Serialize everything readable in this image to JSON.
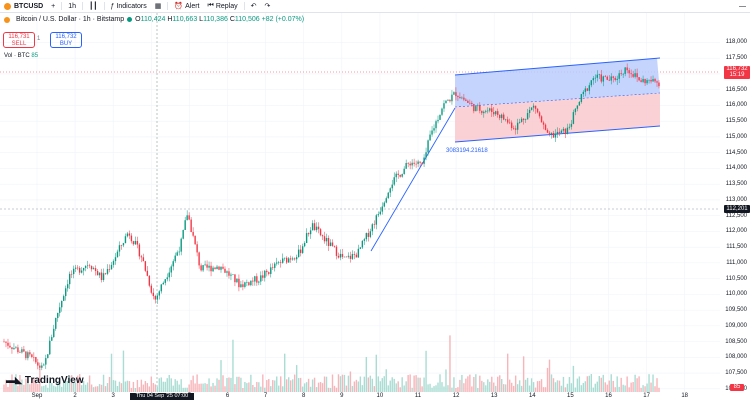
{
  "toolbar": {
    "symbol": "BTCUSD",
    "interval": "1h",
    "indicators_label": "Indicators",
    "alert_label": "Alert",
    "replay_label": "Replay"
  },
  "legend": {
    "title": "Bitcoin / U.S. Dollar · 1h · Bitstamp",
    "open_label": "O",
    "open": "110,424",
    "high_label": "H",
    "high": "110,663",
    "low_label": "L",
    "low": "110,386",
    "close_label": "C",
    "close": "110,506",
    "change": "+82 (+0.07%)"
  },
  "trade": {
    "sell_price": "116,731",
    "sell_label": "SELL",
    "buy_price": "116,732",
    "buy_label": "BUY",
    "spread": "1"
  },
  "volume_legend": {
    "label": "Vol · BTC",
    "value": "85"
  },
  "price_axis": {
    "ticks": [
      "118,000",
      "117,500",
      "117,000",
      "116,500",
      "116,000",
      "115,500",
      "115,000",
      "114,500",
      "114,000",
      "113,500",
      "113,000",
      "112,500",
      "112,000",
      "111,500",
      "111,000",
      "110,500",
      "110,000",
      "109,500",
      "109,000",
      "108,500",
      "108,000",
      "107,500",
      "107,000"
    ],
    "current_price": "116,732",
    "current_countdown": "15:19",
    "crosshair_price": "112,201",
    "volume_badge": "85"
  },
  "time_axis": {
    "ticks": [
      "Sep",
      "2",
      "3",
      "4",
      "5",
      "6",
      "7",
      "8",
      "9",
      "10",
      "11",
      "12",
      "13",
      "14",
      "15",
      "16",
      "17",
      "18"
    ],
    "crosshair_time": "Thu 04 Sep '25  07:00"
  },
  "annotation": {
    "fib_text": "3083194.21618"
  },
  "logo": {
    "text": "TradingView"
  },
  "colors": {
    "up": "#089981",
    "down": "#f23645",
    "channel_line": "#2962ff",
    "channel_upper_fill": "#bbcdfd",
    "channel_lower_fill": "#f9c9ce"
  },
  "chart_data": {
    "type": "candlestick",
    "ylim": [
      106900,
      118300
    ],
    "x_labels": [
      "Sep",
      "2",
      "3",
      "4",
      "5",
      "6",
      "7",
      "8",
      "9",
      "10",
      "11",
      "12",
      "13",
      "14",
      "15",
      "16",
      "17",
      "18"
    ],
    "anchors": [
      {
        "t": 0,
        "price": 108500
      },
      {
        "t": 0.04,
        "price": 108000
      },
      {
        "t": 0.06,
        "price": 107600
      },
      {
        "t": 0.08,
        "price": 109300
      },
      {
        "t": 0.1,
        "price": 110600
      },
      {
        "t": 0.13,
        "price": 111000
      },
      {
        "t": 0.15,
        "price": 110500
      },
      {
        "t": 0.17,
        "price": 111200
      },
      {
        "t": 0.19,
        "price": 112000
      },
      {
        "t": 0.21,
        "price": 111200
      },
      {
        "t": 0.23,
        "price": 109800
      },
      {
        "t": 0.25,
        "price": 110700
      },
      {
        "t": 0.27,
        "price": 111600
      },
      {
        "t": 0.28,
        "price": 112600
      },
      {
        "t": 0.3,
        "price": 110800
      },
      {
        "t": 0.33,
        "price": 110900
      },
      {
        "t": 0.36,
        "price": 110300
      },
      {
        "t": 0.39,
        "price": 110500
      },
      {
        "t": 0.42,
        "price": 111000
      },
      {
        "t": 0.45,
        "price": 111300
      },
      {
        "t": 0.47,
        "price": 112200
      },
      {
        "t": 0.5,
        "price": 111500
      },
      {
        "t": 0.52,
        "price": 111100
      },
      {
        "t": 0.54,
        "price": 111300
      },
      {
        "t": 0.57,
        "price": 112500
      },
      {
        "t": 0.59,
        "price": 113500
      },
      {
        "t": 0.62,
        "price": 114200
      },
      {
        "t": 0.64,
        "price": 114100
      },
      {
        "t": 0.65,
        "price": 115000
      },
      {
        "t": 0.67,
        "price": 116000
      },
      {
        "t": 0.69,
        "price": 116400
      },
      {
        "t": 0.72,
        "price": 115900
      },
      {
        "t": 0.75,
        "price": 115800
      },
      {
        "t": 0.78,
        "price": 115300
      },
      {
        "t": 0.81,
        "price": 116000
      },
      {
        "t": 0.83,
        "price": 115000
      },
      {
        "t": 0.86,
        "price": 115200
      },
      {
        "t": 0.88,
        "price": 116200
      },
      {
        "t": 0.9,
        "price": 116900
      },
      {
        "t": 0.93,
        "price": 116800
      },
      {
        "t": 0.95,
        "price": 117200
      },
      {
        "t": 0.97,
        "price": 116800
      },
      {
        "t": 1.0,
        "price": 116732
      }
    ]
  }
}
